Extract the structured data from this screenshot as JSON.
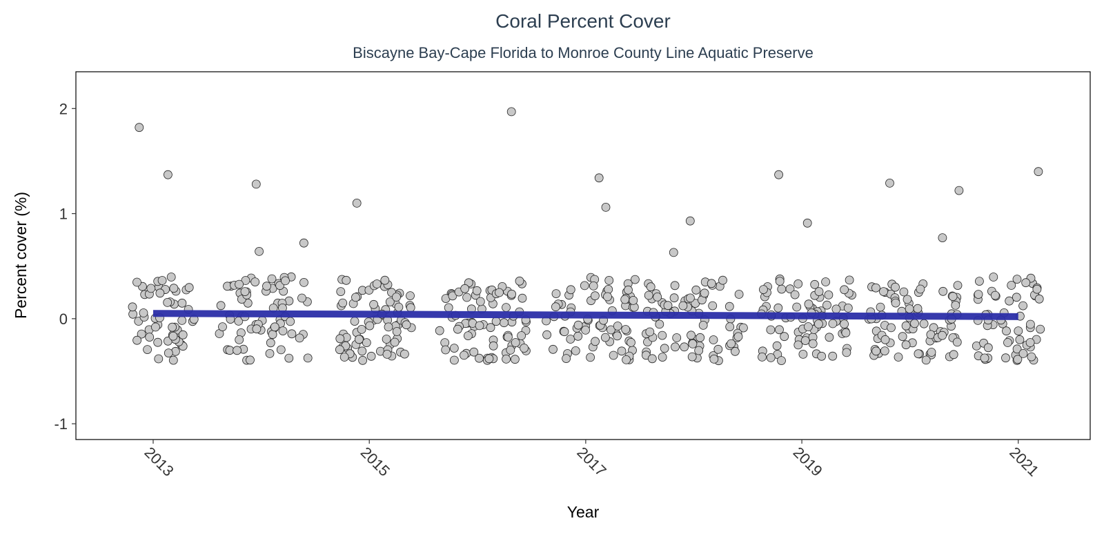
{
  "chart_data": {
    "type": "scatter",
    "title": "Coral Percent Cover",
    "subtitle": "Biscayne Bay-Cape Florida to Monroe County Line Aquatic Preserve",
    "xlabel": "Year",
    "ylabel": "Percent cover (%)",
    "xlim": [
      "2012-04-15",
      "2021-09-01"
    ],
    "ylim": [
      -1.15,
      2.35
    ],
    "x_ticks": [
      "2013",
      "2015",
      "2017",
      "2019",
      "2021"
    ],
    "y_ticks": [
      -1,
      0,
      1,
      2
    ],
    "y_tick_labels": [
      "-1",
      "0",
      "1",
      "2"
    ],
    "grid": false,
    "point_fill": "#c8c8c8",
    "point_stroke": "#222222",
    "trend_color": "#2b2ea8",
    "trend": {
      "x": [
        "2013-01-01",
        "2021-01-01"
      ],
      "y": [
        0.05,
        0.02
      ]
    },
    "outliers": [
      {
        "x": "2012-11-15",
        "y": 1.82
      },
      {
        "x": "2013-02-20",
        "y": 1.37
      },
      {
        "x": "2013-12-15",
        "y": 1.28
      },
      {
        "x": "2013-12-25",
        "y": 0.64
      },
      {
        "x": "2014-05-25",
        "y": 0.72
      },
      {
        "x": "2014-11-20",
        "y": 1.1
      },
      {
        "x": "2016-04-25",
        "y": 1.97
      },
      {
        "x": "2017-02-15",
        "y": 1.34
      },
      {
        "x": "2017-03-10",
        "y": 1.06
      },
      {
        "x": "2017-10-25",
        "y": 0.63
      },
      {
        "x": "2017-12-20",
        "y": 0.93
      },
      {
        "x": "2018-10-15",
        "y": 1.37
      },
      {
        "x": "2019-01-20",
        "y": 0.91
      },
      {
        "x": "2019-10-25",
        "y": 1.29
      },
      {
        "x": "2020-04-20",
        "y": 0.77
      },
      {
        "x": "2020-06-15",
        "y": 1.22
      },
      {
        "x": "2021-03-10",
        "y": 1.4
      }
    ],
    "clusters": [
      {
        "from": "2012-10-20",
        "to": "2013-05-20",
        "n": 55,
        "ymin": -0.4,
        "ymax": 0.4
      },
      {
        "from": "2013-08-10",
        "to": "2014-06-15",
        "n": 70,
        "ymin": -0.4,
        "ymax": 0.4
      },
      {
        "from": "2014-09-20",
        "to": "2015-05-25",
        "n": 75,
        "ymin": -0.4,
        "ymax": 0.38
      },
      {
        "from": "2015-08-25",
        "to": "2016-06-25",
        "n": 80,
        "ymin": -0.4,
        "ymax": 0.36
      },
      {
        "from": "2016-08-20",
        "to": "2017-06-20",
        "n": 75,
        "ymin": -0.4,
        "ymax": 0.4
      },
      {
        "from": "2017-07-20",
        "to": "2018-06-25",
        "n": 80,
        "ymin": -0.4,
        "ymax": 0.4
      },
      {
        "from": "2018-08-15",
        "to": "2019-06-20",
        "n": 80,
        "ymin": -0.4,
        "ymax": 0.4
      },
      {
        "from": "2019-08-15",
        "to": "2020-06-20",
        "n": 80,
        "ymin": -0.4,
        "ymax": 0.36
      },
      {
        "from": "2020-08-10",
        "to": "2021-03-20",
        "n": 60,
        "ymin": -0.4,
        "ymax": 0.4
      }
    ]
  }
}
